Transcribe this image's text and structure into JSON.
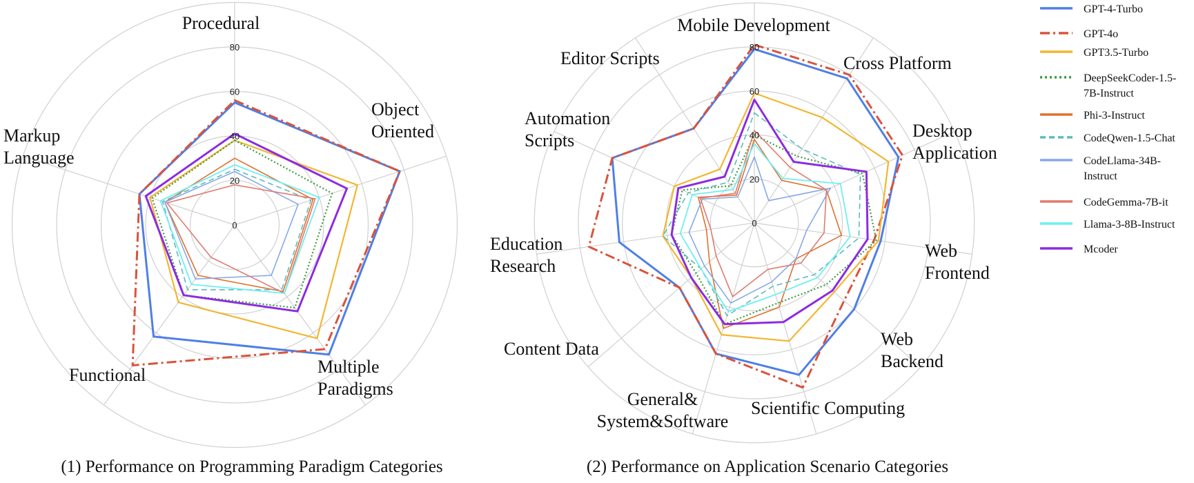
{
  "legend": [
    "GPT-4-Turbo",
    "GPT-4o",
    "GPT3.5-Turbo",
    "DeepSeekCoder-1.5-7B-Instruct",
    "Phi-3-Instruct",
    "CodeQwen-1.5-Chat",
    "CodeLlama-34B-Instruct",
    "CodeGemma-7B-it",
    "Llama-3-8B-Instruct",
    "Mcoder"
  ],
  "colors": {
    "GPT-4-Turbo": "#4f7fe6",
    "GPT-4o": "#d9533b",
    "GPT3.5-Turbo": "#f2b630",
    "DeepSeekCoder-1.5-7B-Instruct": "#3c9a3c",
    "Phi-3-Instruct": "#e0702c",
    "CodeQwen-1.5-Chat": "#5abcbc",
    "CodeLlama-34B-Instruct": "#86a8e8",
    "CodeGemma-7B-it": "#e07a6e",
    "Llama-3-8B-Instruct": "#6eeef2",
    "Mcoder": "#8b2be2"
  },
  "chart_data": [
    {
      "type": "radar",
      "title": "",
      "caption": "(1) Performance on Programming Paradigm Categories",
      "axes": [
        "Procedural",
        "Object Oriented",
        "Multiple Paradigms",
        "Functional",
        "Markup Language"
      ],
      "ticks": [
        "0",
        "20",
        "40",
        "60",
        "80"
      ],
      "range": [
        0,
        80
      ],
      "series": [
        {
          "name": "GPT-4-Turbo",
          "values": [
            55,
            78,
            72,
            62,
            45
          ]
        },
        {
          "name": "GPT-4o",
          "values": [
            56,
            78,
            69,
            78,
            45
          ]
        },
        {
          "name": "GPT3.5-Turbo",
          "values": [
            38,
            58,
            63,
            43,
            40
          ]
        },
        {
          "name": "DeepSeekCoder-1.5-7B-Instruct",
          "values": [
            38,
            46,
            46,
            39,
            39
          ]
        },
        {
          "name": "Phi-3-Instruct",
          "values": [
            30,
            37,
            37,
            28,
            33
          ]
        },
        {
          "name": "CodeQwen-1.5-Chat",
          "values": [
            25,
            36,
            36,
            36,
            34
          ]
        },
        {
          "name": "CodeLlama-34B-Instruct",
          "values": [
            24,
            30,
            28,
            30,
            33
          ]
        },
        {
          "name": "CodeGemma-7B-it",
          "values": [
            18,
            38,
            38,
            18,
            32
          ]
        },
        {
          "name": "Llama-3-8B-Instruct",
          "values": [
            27,
            40,
            38,
            33,
            35
          ]
        },
        {
          "name": "Mcoder",
          "values": [
            41,
            53,
            48,
            39,
            42
          ]
        }
      ]
    },
    {
      "type": "radar",
      "title": "",
      "caption": "(2) Performance on Application Scenario Categories",
      "axes": [
        "Mobile Development",
        "Cross Platform",
        "Desktop Application",
        "Web Frontend",
        "Web Backend",
        "Scientific Computing",
        "General& System&Software",
        "Content Data",
        "Education Research",
        "Automation Scripts",
        "Editor Scripts"
      ],
      "ticks": [
        "0",
        "20",
        "40",
        "60",
        "80"
      ],
      "range": [
        0,
        80
      ],
      "series": [
        {
          "name": "GPT-4-Turbo",
          "values": [
            79,
            78,
            72,
            58,
            60,
            72,
            62,
            45,
            62,
            71,
            51
          ]
        },
        {
          "name": "GPT-4o",
          "values": [
            81,
            80,
            74,
            55,
            54,
            78,
            62,
            45,
            76,
            71,
            51
          ]
        },
        {
          "name": "GPT3.5-Turbo",
          "values": [
            59,
            57,
            67,
            57,
            48,
            56,
            53,
            38,
            42,
            40,
            29
          ]
        },
        {
          "name": "DeepSeekCoder-1.5-7B-Instruct",
          "values": [
            40,
            36,
            54,
            56,
            43,
            38,
            48,
            35,
            38,
            36,
            20
          ]
        },
        {
          "name": "Phi-3-Instruct",
          "values": [
            38,
            23,
            36,
            40,
            25,
            40,
            50,
            27,
            22,
            28,
            15
          ]
        },
        {
          "name": "CodeQwen-1.5-Chat",
          "values": [
            50,
            40,
            53,
            48,
            36,
            30,
            44,
            32,
            42,
            33,
            22
          ]
        },
        {
          "name": "CodeLlama-34B-Instruct",
          "values": [
            30,
            12,
            38,
            24,
            25,
            28,
            38,
            30,
            30,
            26,
            14
          ]
        },
        {
          "name": "CodeGemma-7B-it",
          "values": [
            42,
            30,
            36,
            32,
            28,
            22,
            35,
            23,
            20,
            27,
            16
          ]
        },
        {
          "name": "Llama-3-8B-Instruct",
          "values": [
            36,
            24,
            43,
            44,
            38,
            34,
            42,
            32,
            34,
            31,
            18
          ]
        },
        {
          "name": "Mcoder",
          "values": [
            56,
            33,
            56,
            52,
            47,
            47,
            48,
            38,
            38,
            38,
            25
          ]
        }
      ]
    }
  ]
}
